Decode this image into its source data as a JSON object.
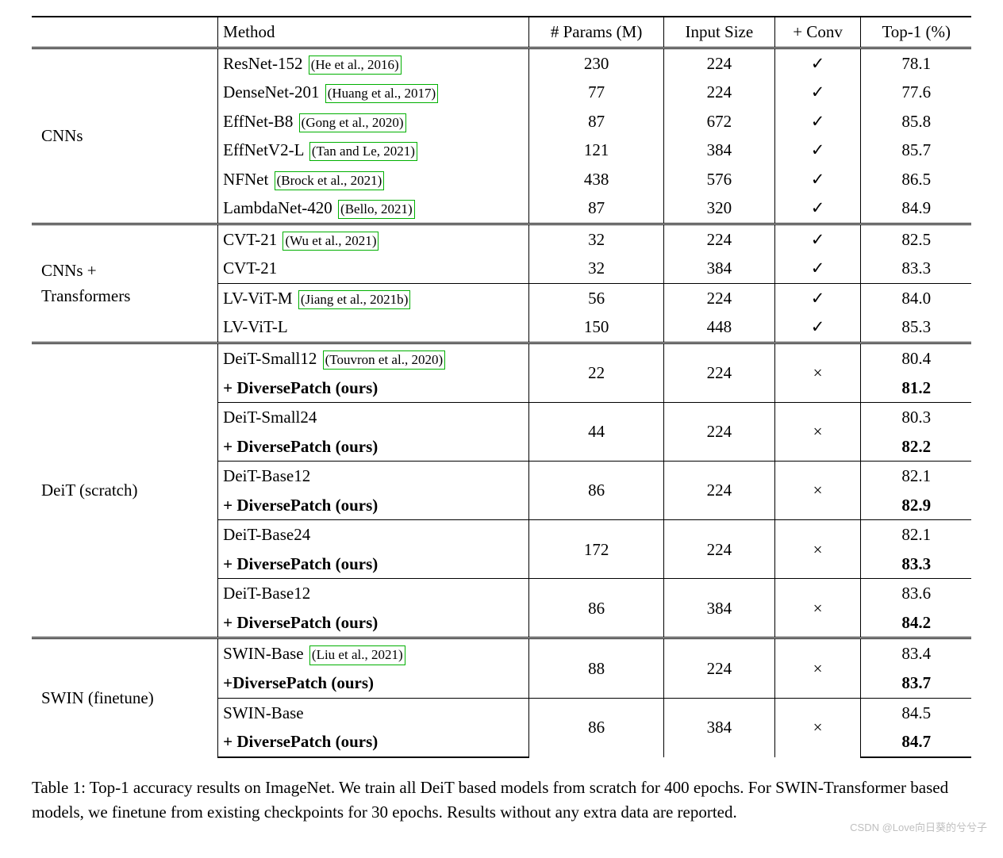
{
  "headers": {
    "method": "Method",
    "params": "# Params (M)",
    "input": "Input Size",
    "conv": "+ Conv",
    "top1": "Top-1 (%)"
  },
  "diverse_patch": "+ DiversePatch (ours)",
  "diverse_patch_nospace": "+DiversePatch (ours)",
  "sections": {
    "cnns": {
      "label": "CNNs",
      "rows": [
        {
          "method": "ResNet-152",
          "cite": "He et al., 2016",
          "params": "230",
          "input": "224",
          "conv": "✓",
          "top1": "78.1"
        },
        {
          "method": "DenseNet-201",
          "cite": "Huang et al., 2017",
          "params": "77",
          "input": "224",
          "conv": "✓",
          "top1": "77.6"
        },
        {
          "method": "EffNet-B8",
          "cite": "Gong et al., 2020",
          "params": "87",
          "input": "672",
          "conv": "✓",
          "top1": "85.8"
        },
        {
          "method": "EffNetV2-L",
          "cite": "Tan and Le, 2021",
          "params": "121",
          "input": "384",
          "conv": "✓",
          "top1": "85.7"
        },
        {
          "method": "NFNet",
          "cite": "Brock et al., 2021",
          "params": "438",
          "input": "576",
          "conv": "✓",
          "top1": "86.5"
        },
        {
          "method": "LambdaNet-420",
          "cite": "Bello, 2021",
          "params": "87",
          "input": "320",
          "conv": "✓",
          "top1": "84.9"
        }
      ]
    },
    "cnns_trans": {
      "label1": "CNNs +",
      "label2": "Transformers",
      "rows": [
        {
          "method": "CVT-21",
          "cite": "Wu et al., 2021",
          "params": "32",
          "input": "224",
          "conv": "✓",
          "top1": "82.5"
        },
        {
          "method": "CVT-21",
          "params": "32",
          "input": "384",
          "conv": "✓",
          "top1": "83.3"
        },
        {
          "method": "LV-ViT-M",
          "cite": "Jiang et al., 2021b",
          "params": "56",
          "input": "224",
          "conv": "✓",
          "top1": "84.0"
        },
        {
          "method": "LV-ViT-L",
          "params": "150",
          "input": "448",
          "conv": "✓",
          "top1": "85.3"
        }
      ]
    },
    "deit": {
      "label": "DeiT (scratch)",
      "groups": [
        {
          "method": "DeiT-Small12",
          "cite": "Touvron et al., 2020",
          "params": "22",
          "input": "224",
          "conv": "×",
          "top1a": "80.4",
          "top1b": "81.2"
        },
        {
          "method": "DeiT-Small24",
          "params": "44",
          "input": "224",
          "conv": "×",
          "top1a": "80.3",
          "top1b": "82.2"
        },
        {
          "method": "DeiT-Base12",
          "params": "86",
          "input": "224",
          "conv": "×",
          "top1a": "82.1",
          "top1b": "82.9"
        },
        {
          "method": "DeiT-Base24",
          "params": "172",
          "input": "224",
          "conv": "×",
          "top1a": "82.1",
          "top1b": "83.3"
        },
        {
          "method": "DeiT-Base12",
          "params": "86",
          "input": "384",
          "conv": "×",
          "top1a": "83.6",
          "top1b": "84.2"
        }
      ]
    },
    "swin": {
      "label": "SWIN (finetune)",
      "groups": [
        {
          "method": "SWIN-Base",
          "cite": "Liu et al., 2021",
          "params": "88",
          "input": "224",
          "conv": "×",
          "top1a": "83.4",
          "top1b": "83.7",
          "nospace": true
        },
        {
          "method": "SWIN-Base",
          "params": "86",
          "input": "384",
          "conv": "×",
          "top1a": "84.5",
          "top1b": "84.7"
        }
      ]
    }
  },
  "caption": "Table 1: Top-1 accuracy results on ImageNet. We train all DeiT based models from scratch for 400 epochs. For SWIN-Transformer based models, we finetune from existing checkpoints for 30 epochs. Results without any extra data are reported.",
  "watermark": "CSDN @Love向日葵的兮兮子",
  "colors": {
    "cite_border": "#00b000",
    "text": "#000000",
    "bg": "#ffffff",
    "watermark": "#bfbfbf"
  },
  "fontsize": {
    "body": 21,
    "cite": 17,
    "watermark": 13
  }
}
